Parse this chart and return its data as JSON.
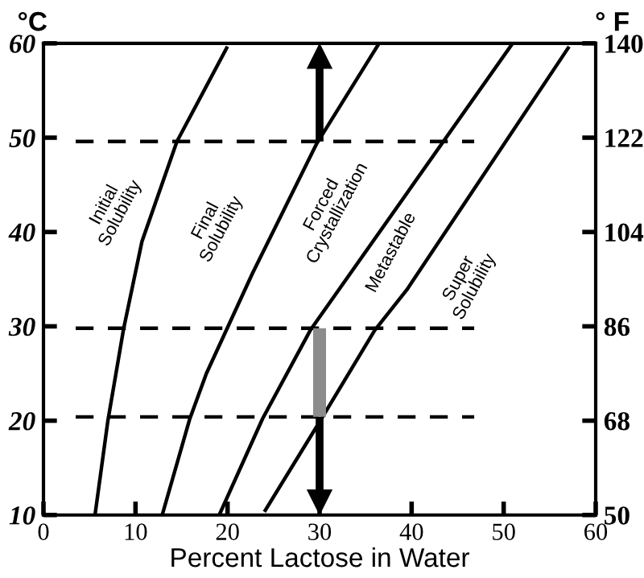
{
  "chart_data": {
    "type": "line",
    "xlabel": "Percent Lactose in Water",
    "ylabel": "°C",
    "y2label": "° F",
    "xlim": [
      0,
      60
    ],
    "xticks": [
      0,
      10,
      20,
      30,
      40,
      50,
      60
    ],
    "ylim": [
      10,
      60
    ],
    "yticks": [
      10,
      20,
      30,
      40,
      50,
      60
    ],
    "y2lim": [
      50,
      140
    ],
    "y2ticks": [
      50,
      68,
      86,
      104,
      122,
      140
    ],
    "series": [
      {
        "color": "#000000",
        "line_style": "solid",
        "x": [
          5.6,
          7.0,
          8.7,
          10.7,
          14.5,
          19.9
        ],
        "values": [
          10,
          20,
          29.7,
          39,
          49.6,
          59.5
        ]
      },
      {
        "color": "#000000",
        "line_style": "solid",
        "x": [
          12.9,
          15.9,
          17.7,
          22.7,
          29.7,
          36.4
        ],
        "values": [
          10,
          20.2,
          25,
          35.6,
          49.4,
          59.9
        ]
      },
      {
        "color": "#000000",
        "line_style": "solid",
        "x": [
          19.1,
          23.8,
          29.0,
          50.9
        ],
        "values": [
          10,
          20.2,
          29.6,
          59.9
        ]
      },
      {
        "color": "#000000",
        "line_style": "solid",
        "x": [
          24.1,
          30.2,
          36.0,
          39.5,
          57.0
        ],
        "values": [
          10.5,
          20.2,
          29.6,
          33.9,
          59.5
        ]
      },
      {
        "color": "#000000",
        "line_style": "dashed",
        "x": [
          3.5,
          46.8
        ],
        "values": [
          49.6,
          49.6
        ]
      },
      {
        "color": "#000000",
        "line_style": "dashed",
        "x": [
          3.5,
          46.8
        ],
        "values": [
          29.8,
          29.8
        ]
      },
      {
        "color": "#000000",
        "line_style": "dashed",
        "x": [
          3.5,
          46.8
        ],
        "values": [
          20.4,
          20.4
        ]
      },
      {
        "type": "bar",
        "color": "#8c8c8c",
        "x": [
          30
        ],
        "base": [
          20.4
        ],
        "values": [
          9.4
        ]
      },
      {
        "color": "#000000",
        "line_style": "solid",
        "marker": "triangle",
        "x": [
          30,
          30
        ],
        "values": [
          49.6,
          58.6
        ]
      },
      {
        "color": "#000000",
        "line_style": "solid",
        "marker": "triangle",
        "x": [
          30,
          30
        ],
        "values": [
          20.4,
          11.4
        ]
      }
    ],
    "annotations": [
      "Initial\nSolubility",
      "Final\nSolubility",
      "Forced\nCrystallization",
      "Metastable",
      "Super\nSolubility"
    ]
  }
}
